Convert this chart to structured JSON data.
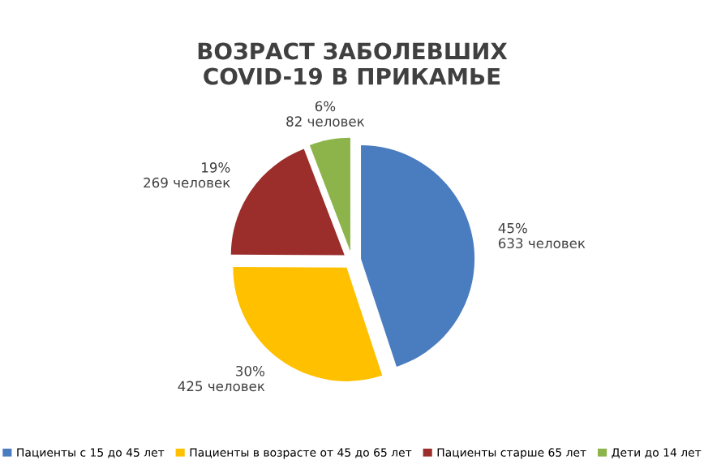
{
  "chart_data": {
    "type": "pie",
    "title": "ВОЗРАСТ ЗАБОЛЕВШИХ\nCOVID-19 В ПРИКАМЬЕ",
    "categories": [
      "Пациенты с 15 до 45 лет",
      "Пациенты в возрасте от 45 до 65 лет",
      "Пациенты старше 65 лет",
      "Дети до 14 лет"
    ],
    "values": [
      633,
      425,
      269,
      82
    ],
    "value_labels": [
      "45%\n633 человек",
      "30%\n425 человек",
      "19%\n269 человек",
      "6%\n82 человек"
    ],
    "colors": [
      "#4a7cc0",
      "#ffc000",
      "#9b2d2a",
      "#8db44a"
    ],
    "legend": "bottom"
  }
}
